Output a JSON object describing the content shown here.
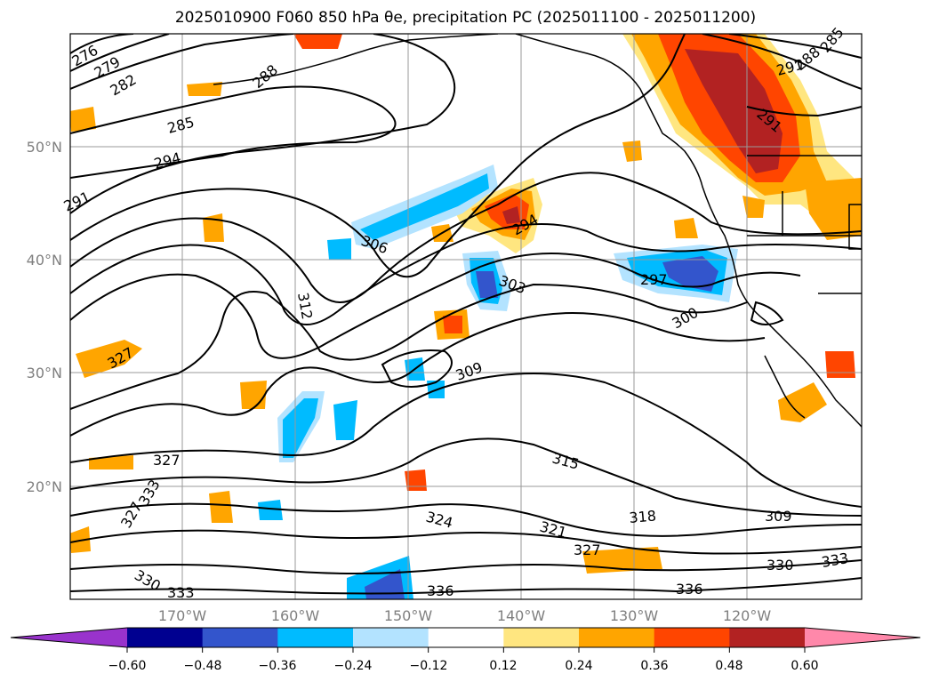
{
  "title": "2025010900 F060 850 hPa θe, precipitation PC (2025011100 - 2025011200)",
  "map": {
    "lat_labels": [
      "50°N",
      "40°N",
      "30°N",
      "20°N"
    ],
    "lon_labels": [
      "170°W",
      "160°W",
      "150°W",
      "140°W",
      "130°W",
      "120°W"
    ],
    "contour_labels": [
      "276",
      "279",
      "282",
      "285",
      "294",
      "291",
      "288",
      "306",
      "312",
      "303",
      "297",
      "300",
      "327",
      "309",
      "315",
      "327",
      "333",
      "327",
      "324",
      "321",
      "318",
      "309",
      "327",
      "330",
      "333",
      "336",
      "336",
      "330",
      "333",
      "291",
      "294",
      "291",
      "288",
      "285"
    ]
  },
  "colorbar": {
    "ticks": [
      "−0.60",
      "−0.48",
      "−0.36",
      "−0.24",
      "−0.12",
      "0.12",
      "0.24",
      "0.36",
      "0.48",
      "0.60"
    ],
    "colors": [
      "#9933cc",
      "#000090",
      "#3355cc",
      "#00bbff",
      "#b3e3ff",
      "#ffffff",
      "#ffe680",
      "#ffa500",
      "#ff4500",
      "#b22222",
      "#ff88aa"
    ]
  }
}
